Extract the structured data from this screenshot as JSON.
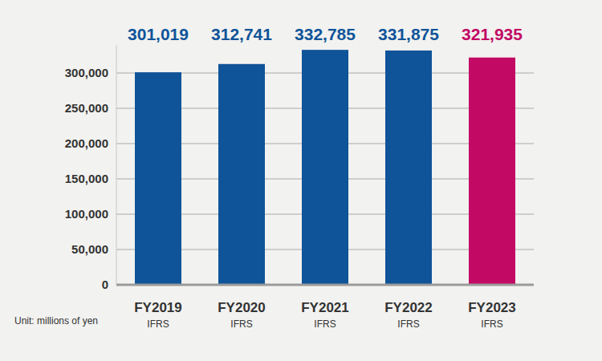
{
  "chart_data": {
    "type": "bar",
    "y_label": "Unit: millions of yen",
    "categories": [
      "FY2019",
      "FY2020",
      "FY2021",
      "FY2022",
      "FY2023"
    ],
    "category_sublabels": [
      "IFRS",
      "IFRS",
      "IFRS",
      "IFRS",
      "IFRS"
    ],
    "values": [
      301019,
      312741,
      332785,
      331875,
      321935
    ],
    "value_labels": [
      "301,019",
      "312,741",
      "332,785",
      "331,875",
      "321,935"
    ],
    "colors": [
      "#0f5499",
      "#0f5499",
      "#0f5499",
      "#0f5499",
      "#c20a64"
    ],
    "ylim": [
      0,
      340000
    ],
    "yticks": [
      0,
      {
        "value": 50000,
        "label": "50,000"
      },
      {
        "value": 100000,
        "label": "100,000"
      },
      {
        "value": 150000,
        "label": "150,000"
      },
      {
        "value": 200000,
        "label": "200,000"
      },
      {
        "value": 250000,
        "label": "250,000"
      },
      {
        "value": 300000,
        "label": "300,000"
      }
    ],
    "grid": true,
    "data_labels": true
  }
}
